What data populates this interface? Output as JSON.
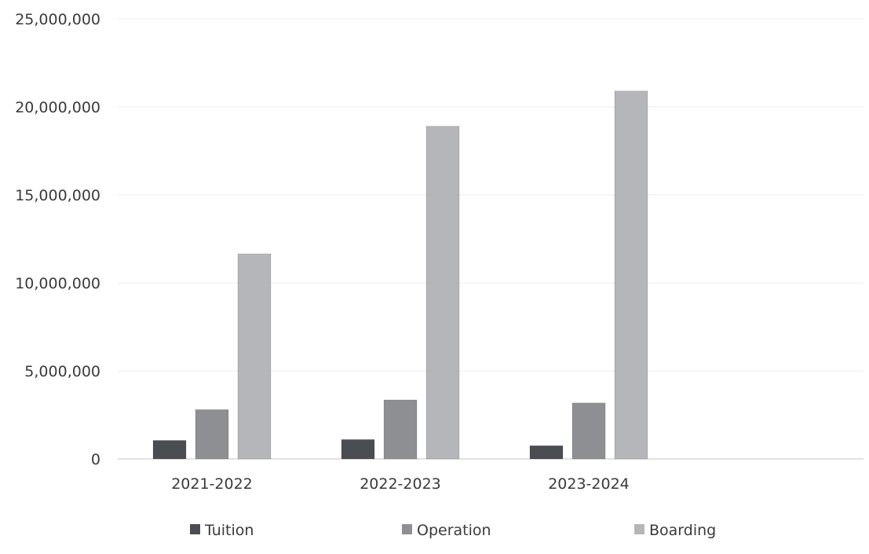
{
  "chart_data": {
    "type": "bar",
    "title": "",
    "xlabel": "",
    "ylabel": "",
    "categories": [
      "2021-2022",
      "2022-2023",
      "2023-2024"
    ],
    "series": [
      {
        "name": "Tuition",
        "values": [
          1050000,
          1100000,
          750000
        ],
        "color": "#4a4d52"
      },
      {
        "name": "Operation",
        "values": [
          2800000,
          3350000,
          3180000
        ],
        "color": "#8e8f93"
      },
      {
        "name": "Boarding",
        "values": [
          11650000,
          18900000,
          20900000
        ],
        "color": "#b5b6b9"
      }
    ],
    "ylim": [
      0,
      25000000
    ],
    "yticks": [
      0,
      5000000,
      10000000,
      15000000,
      20000000,
      25000000
    ],
    "ytick_labels": [
      "0",
      "5,000,000",
      "10,000,000",
      "15,000,000",
      "20,000,000",
      "25,000,000"
    ],
    "grid": true,
    "legend_position": "bottom"
  }
}
